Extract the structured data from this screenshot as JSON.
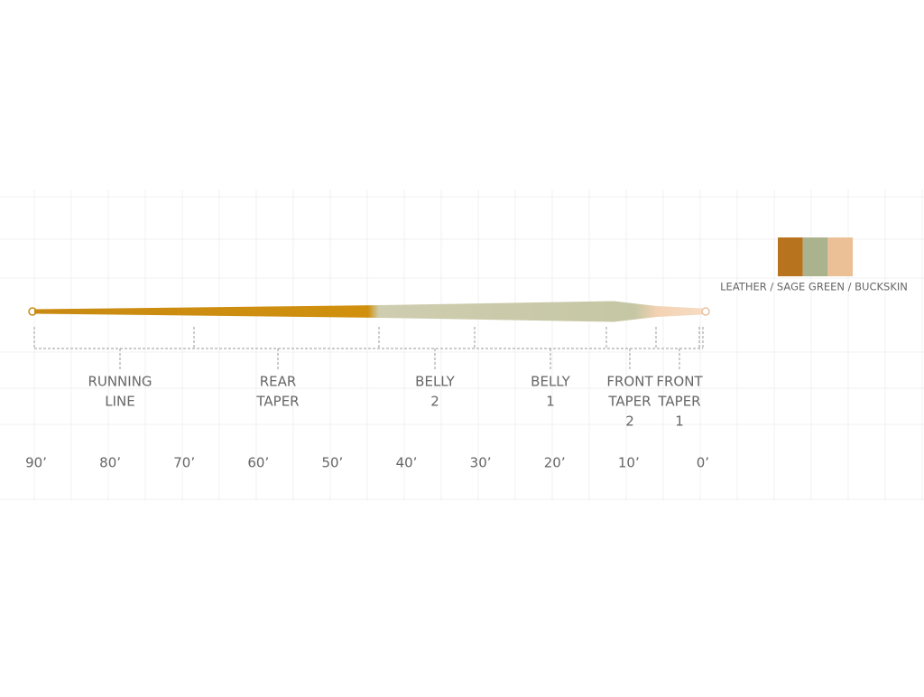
{
  "segments": [
    {
      "lines": [
        "RUNNING",
        "LINE"
      ]
    },
    {
      "lines": [
        "REAR",
        "TAPER"
      ]
    },
    {
      "lines": [
        "BELLY",
        "2"
      ]
    },
    {
      "lines": [
        "BELLY",
        "1"
      ]
    },
    {
      "lines": [
        "FRONT",
        "TAPER",
        "2"
      ]
    },
    {
      "lines": [
        "FRONT",
        "TAPER",
        "1"
      ]
    }
  ],
  "distance_labels": [
    "90’",
    "80’",
    "70’",
    "60’",
    "50’",
    "40’",
    "30’",
    "20’",
    "10’",
    "0’"
  ],
  "legend": {
    "label": "LEATHER / SAGE GREEN / BUCKSKIN",
    "swatches": [
      "#b8731f",
      "#abb28e",
      "#ecc097"
    ]
  }
}
